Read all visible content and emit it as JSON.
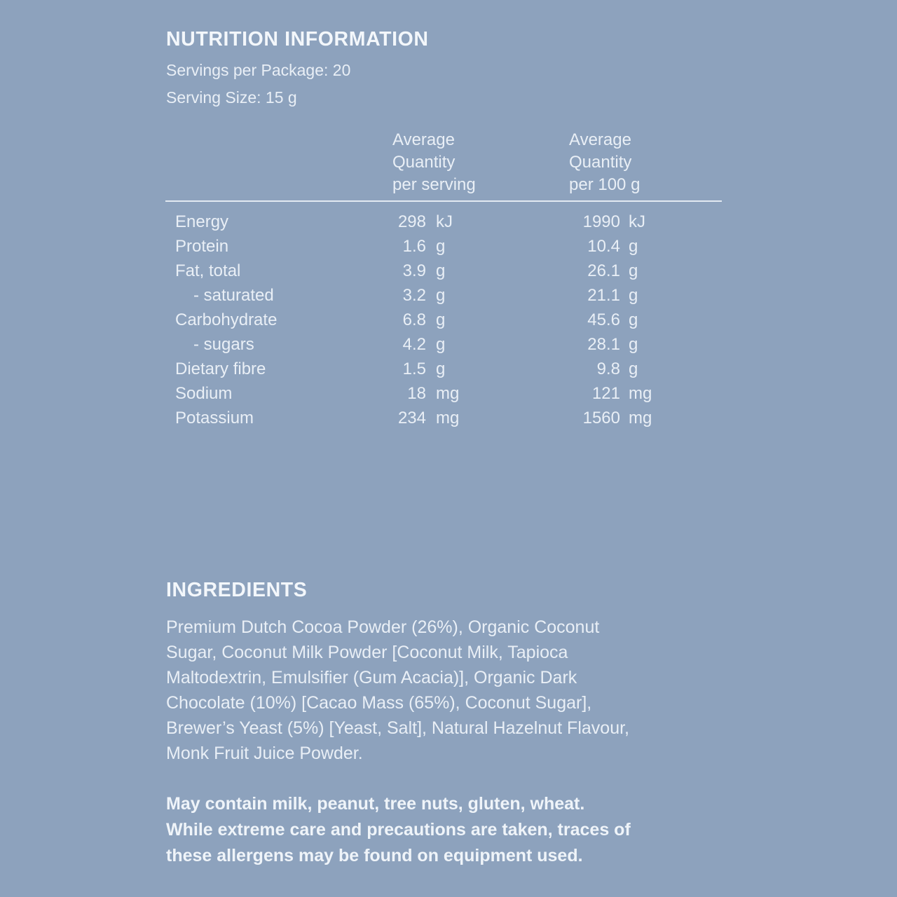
{
  "colors": {
    "background": "#8DA2BD",
    "text": "#E9EFF6",
    "bright_text": "#F3F7FB",
    "rule": "#F2F7FC"
  },
  "header": {
    "title": "NUTRITION INFORMATION",
    "servings_per_package_line": "Servings per Package: 20",
    "serving_size_line": "Serving Size: 15 g"
  },
  "nutrition_table": {
    "column_headers": {
      "per_serving": "Average\nQuantity\nper serving",
      "per_100g": "Average\nQuantity\nper 100 g"
    },
    "rows": [
      {
        "label": "Energy",
        "per_serving": "298",
        "serving_unit": "kJ",
        "per_100g": "1990",
        "per_100g_unit": "kJ"
      },
      {
        "label": "Protein",
        "per_serving": "1.6",
        "serving_unit": "g",
        "per_100g": "10.4",
        "per_100g_unit": "g"
      },
      {
        "label": "Fat, total",
        "per_serving": "3.9",
        "serving_unit": "g",
        "per_100g": "26.1",
        "per_100g_unit": "g"
      },
      {
        "label": "- saturated",
        "per_serving": "3.2",
        "serving_unit": "g",
        "per_100g": "21.1",
        "per_100g_unit": "g"
      },
      {
        "label": "Carbohydrate",
        "per_serving": "6.8",
        "serving_unit": "g",
        "per_100g": "45.6",
        "per_100g_unit": "g"
      },
      {
        "label": "- sugars",
        "per_serving": "4.2",
        "serving_unit": "g",
        "per_100g": "28.1",
        "per_100g_unit": "g"
      },
      {
        "label": "Dietary fibre",
        "per_serving": "1.5",
        "serving_unit": "g",
        "per_100g": "9.8",
        "per_100g_unit": "g"
      },
      {
        "label": "Sodium",
        "per_serving": "18",
        "serving_unit": "mg",
        "per_100g": "121",
        "per_100g_unit": "mg"
      },
      {
        "label": "Potassium",
        "per_serving": "234",
        "serving_unit": "mg",
        "per_100g": "1560",
        "per_100g_unit": "mg"
      }
    ]
  },
  "ingredients": {
    "heading": "INGREDIENTS",
    "text": "Premium Dutch Cocoa Powder (26%), Organic Coconut\nSugar, Coconut Milk Powder [Coconut Milk, Tapioca\nMaltodextrin, Emulsifier (Gum Acacia)], Organic Dark\nChocolate (10%) [Cacao Mass (65%), Coconut Sugar],\nBrewer’s Yeast (5%) [Yeast, Salt], Natural Hazelnut Flavour,\nMonk Fruit Juice Powder."
  },
  "allergen_statement": "May contain milk, peanut, tree nuts, gluten, wheat.\nWhile extreme care and precautions are taken, traces of\nthese allergens may be found on equipment used."
}
